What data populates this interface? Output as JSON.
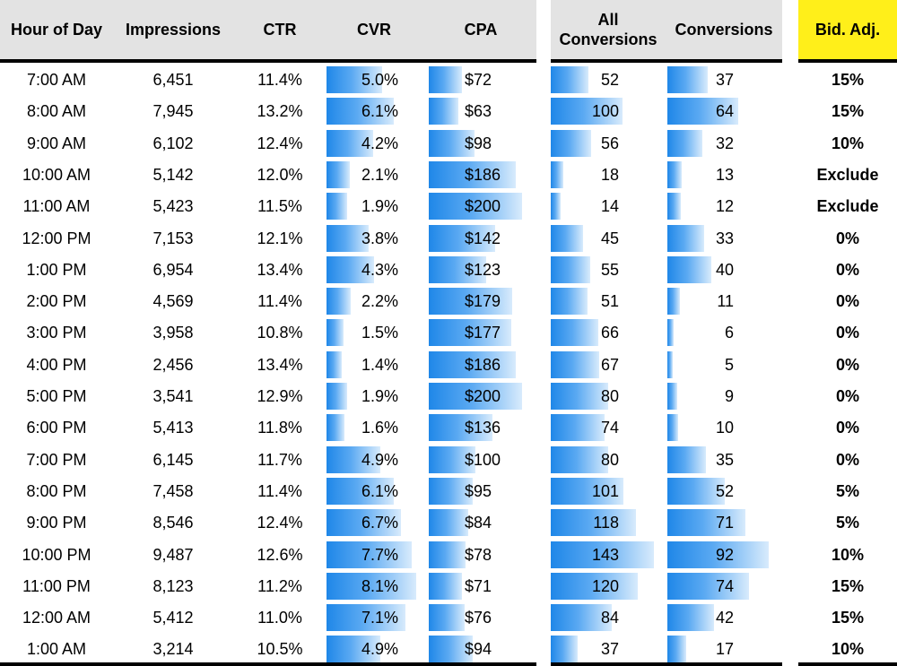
{
  "headers": {
    "hour": "Hour of Day",
    "impressions": "Impressions",
    "ctr": "CTR",
    "cvr": "CVR",
    "cpa": "CPA",
    "all_conversions": "All\nConversions",
    "conversions": "Conversions",
    "bid_adj": "Bid. Adj."
  },
  "colors": {
    "header_bg": "#e3e3e3",
    "bid_header_bg": "#ffef1a",
    "bar_start": "#1f87e8",
    "bar_end": "#d8ebfc"
  },
  "rows": [
    {
      "hour": "7:00 AM",
      "impressions": "6,451",
      "ctr": "11.4%",
      "cvr": "5.0%",
      "cvr_value": 5.0,
      "cpa": "$72",
      "cpa_value": 72,
      "all_conv": "52",
      "all_conv_value": 52,
      "conv": "37",
      "conv_value": 37,
      "bid": "15%"
    },
    {
      "hour": "8:00 AM",
      "impressions": "7,945",
      "ctr": "13.2%",
      "cvr": "6.1%",
      "cvr_value": 6.1,
      "cpa": "$63",
      "cpa_value": 63,
      "all_conv": "100",
      "all_conv_value": 100,
      "conv": "64",
      "conv_value": 64,
      "bid": "15%"
    },
    {
      "hour": "9:00 AM",
      "impressions": "6,102",
      "ctr": "12.4%",
      "cvr": "4.2%",
      "cvr_value": 4.2,
      "cpa": "$98",
      "cpa_value": 98,
      "all_conv": "56",
      "all_conv_value": 56,
      "conv": "32",
      "conv_value": 32,
      "bid": "10%"
    },
    {
      "hour": "10:00 AM",
      "impressions": "5,142",
      "ctr": "12.0%",
      "cvr": "2.1%",
      "cvr_value": 2.1,
      "cpa": "$186",
      "cpa_value": 186,
      "all_conv": "18",
      "all_conv_value": 18,
      "conv": "13",
      "conv_value": 13,
      "bid": "Exclude"
    },
    {
      "hour": "11:00 AM",
      "impressions": "5,423",
      "ctr": "11.5%",
      "cvr": "1.9%",
      "cvr_value": 1.9,
      "cpa": "$200",
      "cpa_value": 200,
      "all_conv": "14",
      "all_conv_value": 14,
      "conv": "12",
      "conv_value": 12,
      "bid": "Exclude"
    },
    {
      "hour": "12:00 PM",
      "impressions": "7,153",
      "ctr": "12.1%",
      "cvr": "3.8%",
      "cvr_value": 3.8,
      "cpa": "$142",
      "cpa_value": 142,
      "all_conv": "45",
      "all_conv_value": 45,
      "conv": "33",
      "conv_value": 33,
      "bid": "0%"
    },
    {
      "hour": "1:00 PM",
      "impressions": "6,954",
      "ctr": "13.4%",
      "cvr": "4.3%",
      "cvr_value": 4.3,
      "cpa": "$123",
      "cpa_value": 123,
      "all_conv": "55",
      "all_conv_value": 55,
      "conv": "40",
      "conv_value": 40,
      "bid": "0%"
    },
    {
      "hour": "2:00 PM",
      "impressions": "4,569",
      "ctr": "11.4%",
      "cvr": "2.2%",
      "cvr_value": 2.2,
      "cpa": "$179",
      "cpa_value": 179,
      "all_conv": "51",
      "all_conv_value": 51,
      "conv": "11",
      "conv_value": 11,
      "bid": "0%"
    },
    {
      "hour": "3:00 PM",
      "impressions": "3,958",
      "ctr": "10.8%",
      "cvr": "1.5%",
      "cvr_value": 1.5,
      "cpa": "$177",
      "cpa_value": 177,
      "all_conv": "66",
      "all_conv_value": 66,
      "conv": "6",
      "conv_value": 6,
      "bid": "0%"
    },
    {
      "hour": "4:00 PM",
      "impressions": "2,456",
      "ctr": "13.4%",
      "cvr": "1.4%",
      "cvr_value": 1.4,
      "cpa": "$186",
      "cpa_value": 186,
      "all_conv": "67",
      "all_conv_value": 67,
      "conv": "5",
      "conv_value": 5,
      "bid": "0%"
    },
    {
      "hour": "5:00 PM",
      "impressions": "3,541",
      "ctr": "12.9%",
      "cvr": "1.9%",
      "cvr_value": 1.9,
      "cpa": "$200",
      "cpa_value": 200,
      "all_conv": "80",
      "all_conv_value": 80,
      "conv": "9",
      "conv_value": 9,
      "bid": "0%"
    },
    {
      "hour": "6:00 PM",
      "impressions": "5,413",
      "ctr": "11.8%",
      "cvr": "1.6%",
      "cvr_value": 1.6,
      "cpa": "$136",
      "cpa_value": 136,
      "all_conv": "74",
      "all_conv_value": 74,
      "conv": "10",
      "conv_value": 10,
      "bid": "0%"
    },
    {
      "hour": "7:00 PM",
      "impressions": "6,145",
      "ctr": "11.7%",
      "cvr": "4.9%",
      "cvr_value": 4.9,
      "cpa": "$100",
      "cpa_value": 100,
      "all_conv": "80",
      "all_conv_value": 80,
      "conv": "35",
      "conv_value": 35,
      "bid": "0%"
    },
    {
      "hour": "8:00 PM",
      "impressions": "7,458",
      "ctr": "11.4%",
      "cvr": "6.1%",
      "cvr_value": 6.1,
      "cpa": "$95",
      "cpa_value": 95,
      "all_conv": "101",
      "all_conv_value": 101,
      "conv": "52",
      "conv_value": 52,
      "bid": "5%"
    },
    {
      "hour": "9:00 PM",
      "impressions": "8,546",
      "ctr": "12.4%",
      "cvr": "6.7%",
      "cvr_value": 6.7,
      "cpa": "$84",
      "cpa_value": 84,
      "all_conv": "118",
      "all_conv_value": 118,
      "conv": "71",
      "conv_value": 71,
      "bid": "5%"
    },
    {
      "hour": "10:00 PM",
      "impressions": "9,487",
      "ctr": "12.6%",
      "cvr": "7.7%",
      "cvr_value": 7.7,
      "cpa": "$78",
      "cpa_value": 78,
      "all_conv": "143",
      "all_conv_value": 143,
      "conv": "92",
      "conv_value": 92,
      "bid": "10%"
    },
    {
      "hour": "11:00 PM",
      "impressions": "8,123",
      "ctr": "11.2%",
      "cvr": "8.1%",
      "cvr_value": 8.1,
      "cpa": "$71",
      "cpa_value": 71,
      "all_conv": "120",
      "all_conv_value": 120,
      "conv": "74",
      "conv_value": 74,
      "bid": "15%"
    },
    {
      "hour": "12:00 AM",
      "impressions": "5,412",
      "ctr": "11.0%",
      "cvr": "7.1%",
      "cvr_value": 7.1,
      "cpa": "$76",
      "cpa_value": 76,
      "all_conv": "84",
      "all_conv_value": 84,
      "conv": "42",
      "conv_value": 42,
      "bid": "15%"
    },
    {
      "hour": "1:00 AM",
      "impressions": "3,214",
      "ctr": "10.5%",
      "cvr": "4.9%",
      "cvr_value": 4.9,
      "cpa": "$94",
      "cpa_value": 94,
      "all_conv": "37",
      "all_conv_value": 37,
      "conv": "17",
      "conv_value": 17,
      "bid": "10%"
    }
  ]
}
